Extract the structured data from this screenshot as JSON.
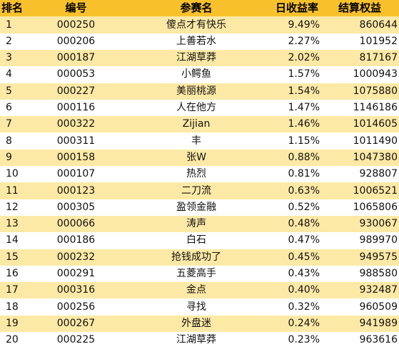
{
  "colors": {
    "header_bg": "#f8c12c",
    "alt_row_bg": "#fde9a6",
    "row_bg": "#ffffff"
  },
  "headers": {
    "rank": "排名",
    "code": "编号",
    "name": "参赛名",
    "daily_return": "日收益率",
    "settlement_equity": "结算权益"
  },
  "rows": [
    {
      "rank": "1",
      "code": "000250",
      "name": "傻点才有快乐",
      "daily_return": "9.49%",
      "settlement_equity": "860644"
    },
    {
      "rank": "2",
      "code": "000206",
      "name": "上善若水",
      "daily_return": "2.27%",
      "settlement_equity": "101952"
    },
    {
      "rank": "3",
      "code": "000187",
      "name": "江湖草莽",
      "daily_return": "2.02%",
      "settlement_equity": "817167"
    },
    {
      "rank": "4",
      "code": "000053",
      "name": "小鳄鱼",
      "daily_return": "1.57%",
      "settlement_equity": "1000943"
    },
    {
      "rank": "5",
      "code": "000227",
      "name": "美丽桃源",
      "daily_return": "1.54%",
      "settlement_equity": "1075880"
    },
    {
      "rank": "6",
      "code": "000116",
      "name": "人在他方",
      "daily_return": "1.47%",
      "settlement_equity": "1146186"
    },
    {
      "rank": "7",
      "code": "000322",
      "name": "Zijian",
      "daily_return": "1.46%",
      "settlement_equity": "1014605"
    },
    {
      "rank": "8",
      "code": "000311",
      "name": "丰",
      "daily_return": "1.15%",
      "settlement_equity": "1011490"
    },
    {
      "rank": "9",
      "code": "000158",
      "name": "张W",
      "daily_return": "0.88%",
      "settlement_equity": "1047380"
    },
    {
      "rank": "10",
      "code": "000107",
      "name": "热烈",
      "daily_return": "0.81%",
      "settlement_equity": "928807"
    },
    {
      "rank": "11",
      "code": "000123",
      "name": "二刀流",
      "daily_return": "0.63%",
      "settlement_equity": "1006521"
    },
    {
      "rank": "12",
      "code": "000305",
      "name": "盈领金融",
      "daily_return": "0.52%",
      "settlement_equity": "1065806"
    },
    {
      "rank": "13",
      "code": "000066",
      "name": "涛声",
      "daily_return": "0.48%",
      "settlement_equity": "930067"
    },
    {
      "rank": "14",
      "code": "000186",
      "name": "白石",
      "daily_return": "0.47%",
      "settlement_equity": "989970"
    },
    {
      "rank": "15",
      "code": "000232",
      "name": "抢钱成功了",
      "daily_return": "0.45%",
      "settlement_equity": "949575"
    },
    {
      "rank": "16",
      "code": "000291",
      "name": "五菱高手",
      "daily_return": "0.43%",
      "settlement_equity": "988580"
    },
    {
      "rank": "17",
      "code": "000316",
      "name": "金点",
      "daily_return": "0.40%",
      "settlement_equity": "932487"
    },
    {
      "rank": "18",
      "code": "000256",
      "name": "寻找",
      "daily_return": "0.32%",
      "settlement_equity": "960509"
    },
    {
      "rank": "19",
      "code": "000267",
      "name": "外盘迷",
      "daily_return": "0.24%",
      "settlement_equity": "941989"
    },
    {
      "rank": "20",
      "code": "000225",
      "name": "江湖草莽",
      "daily_return": "0.23%",
      "settlement_equity": "963616"
    }
  ]
}
